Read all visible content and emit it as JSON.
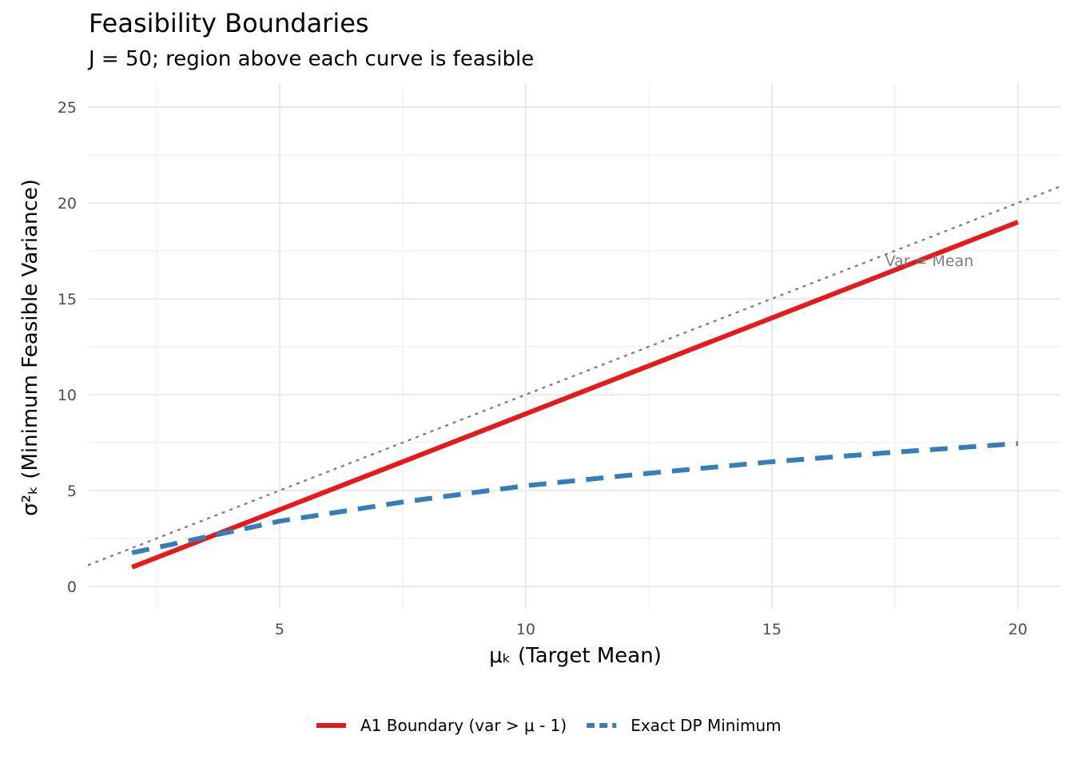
{
  "chart_data": {
    "type": "line",
    "title": "Feasibility Boundaries",
    "subtitle": "J = 50; region above each curve is feasible",
    "xlabel": "μₖ (Target Mean)",
    "ylabel": "σ²ₖ (Minimum Feasible Variance)",
    "xlim": [
      1.12,
      20.88
    ],
    "ylim": [
      -1.17,
      26.25
    ],
    "xticks": [
      5,
      10,
      15,
      20
    ],
    "yticks": [
      0,
      5,
      10,
      15,
      20,
      25
    ],
    "grid": true,
    "legend_position": "bottom",
    "series": [
      {
        "name": "A1 Boundary (var > μ - 1)",
        "color": "#E41A1C",
        "style": "solid",
        "x": [
          2,
          20
        ],
        "y": [
          1,
          19
        ]
      },
      {
        "name": "Exact DP Minimum",
        "color": "#377EB8",
        "style": "dashed",
        "x": [
          2,
          3,
          4,
          5,
          7.5,
          10,
          12.5,
          15,
          17.5,
          20
        ],
        "y": [
          1.75,
          2.3,
          2.85,
          3.4,
          4.4,
          5.25,
          5.9,
          6.5,
          7.0,
          7.45
        ]
      }
    ],
    "reference_line": {
      "label": "Var = Mean",
      "slope": 1,
      "intercept": 0,
      "color": "#7f7f7f",
      "style": "dotted",
      "label_at": [
        18.2,
        17
      ]
    }
  }
}
